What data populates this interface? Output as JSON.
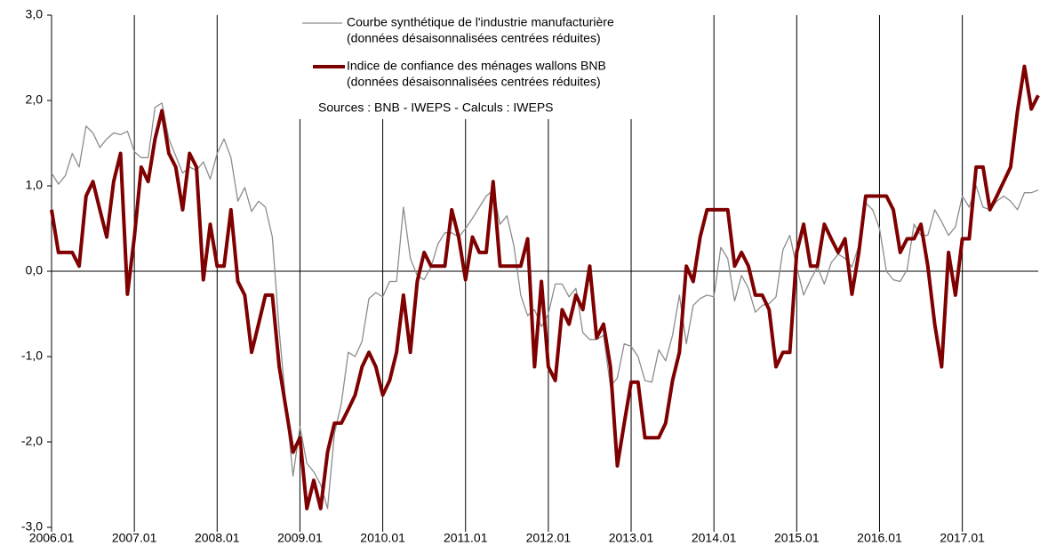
{
  "chart_data": {
    "type": "line",
    "categories": [
      "2006.01",
      null,
      null,
      null,
      null,
      null,
      null,
      null,
      null,
      null,
      null,
      null,
      "2007.01",
      null,
      null,
      null,
      null,
      null,
      null,
      null,
      null,
      null,
      null,
      null,
      "2008.01",
      null,
      null,
      null,
      null,
      null,
      null,
      null,
      null,
      null,
      null,
      null,
      "2009.01",
      null,
      null,
      null,
      null,
      null,
      null,
      null,
      null,
      null,
      null,
      null,
      "2010.01",
      null,
      null,
      null,
      null,
      null,
      null,
      null,
      null,
      null,
      null,
      null,
      "2011.01",
      null,
      null,
      null,
      null,
      null,
      null,
      null,
      null,
      null,
      null,
      null,
      "2012.01",
      null,
      null,
      null,
      null,
      null,
      null,
      null,
      null,
      null,
      null,
      null,
      "2013.01",
      null,
      null,
      null,
      null,
      null,
      null,
      null,
      null,
      null,
      null,
      null,
      "2014.01",
      null,
      null,
      null,
      null,
      null,
      null,
      null,
      null,
      null,
      null,
      null,
      "2015.01",
      null,
      null,
      null,
      null,
      null,
      null,
      null,
      null,
      null,
      null,
      null,
      "2016.01",
      null,
      null,
      null,
      null,
      null,
      null,
      null,
      null,
      null,
      null,
      null,
      "2017.01",
      null,
      null,
      null,
      null,
      null,
      null,
      null,
      null,
      null,
      null,
      null
    ],
    "series": [
      {
        "name": "Courbe synthétique de l'industrie manufacturière",
        "description": "(données désaisonnalisées centrées réduites)",
        "color": "#8c8c8c",
        "width": 1.3,
        "values": [
          1.15,
          1.02,
          1.12,
          1.38,
          1.22,
          1.7,
          1.62,
          1.45,
          1.55,
          1.62,
          1.6,
          1.64,
          1.4,
          1.33,
          1.33,
          1.92,
          1.97,
          1.55,
          1.35,
          1.15,
          1.22,
          1.18,
          1.28,
          1.08,
          1.38,
          1.55,
          1.33,
          0.82,
          0.98,
          0.7,
          0.82,
          0.75,
          0.4,
          -0.7,
          -1.6,
          -2.4,
          -1.82,
          -2.25,
          -2.35,
          -2.5,
          -2.78,
          -1.9,
          -1.55,
          -0.95,
          -1.0,
          -0.82,
          -0.32,
          -0.25,
          -0.3,
          -0.12,
          -0.12,
          0.75,
          0.15,
          -0.05,
          -0.1,
          0.05,
          0.32,
          0.45,
          0.45,
          0.4,
          0.5,
          0.62,
          0.75,
          0.88,
          0.95,
          0.55,
          0.65,
          0.3,
          -0.28,
          -0.52,
          -0.45,
          -0.65,
          -0.5,
          -0.15,
          -0.15,
          -0.3,
          -0.2,
          -0.72,
          -0.8,
          -0.8,
          -0.75,
          -1.35,
          -1.25,
          -0.85,
          -0.88,
          -1.0,
          -1.28,
          -1.3,
          -0.92,
          -1.05,
          -0.75,
          -0.28,
          -0.85,
          -0.4,
          -0.32,
          -0.28,
          -0.3,
          0.28,
          0.15,
          -0.35,
          -0.05,
          -0.2,
          -0.48,
          -0.4,
          -0.38,
          -0.3,
          0.25,
          0.42,
          0.05,
          -0.28,
          -0.1,
          0.05,
          -0.15,
          0.1,
          0.2,
          0.15,
          0.05,
          0.3,
          0.8,
          0.72,
          0.5,
          0.0,
          -0.1,
          -0.12,
          0.02,
          0.55,
          0.42,
          0.42,
          0.72,
          0.58,
          0.42,
          0.52,
          0.88,
          0.75,
          1.0,
          0.75,
          0.72,
          0.82,
          0.88,
          0.82,
          0.72,
          0.92,
          0.92,
          0.95
        ]
      },
      {
        "name": "Indice de confiance des ménages wallons BNB",
        "description": "(données désaisonnalisées centrées réduites)",
        "color": "#7f0000",
        "width": 4,
        "values": [
          0.72,
          0.22,
          0.22,
          0.22,
          0.06,
          0.88,
          1.05,
          0.72,
          0.4,
          1.05,
          1.38,
          -0.27,
          0.4,
          1.22,
          1.05,
          1.55,
          1.88,
          1.38,
          1.22,
          0.72,
          1.38,
          1.22,
          -0.1,
          0.55,
          0.06,
          0.06,
          0.72,
          -0.12,
          -0.28,
          -0.95,
          -0.62,
          -0.28,
          -0.28,
          -1.12,
          -1.62,
          -2.12,
          -1.95,
          -2.78,
          -2.45,
          -2.78,
          -2.12,
          -1.78,
          -1.78,
          -1.62,
          -1.45,
          -1.12,
          -0.95,
          -1.12,
          -1.45,
          -1.28,
          -0.95,
          -0.28,
          -0.95,
          -0.12,
          0.22,
          0.06,
          0.06,
          0.06,
          0.72,
          0.4,
          -0.1,
          0.4,
          0.22,
          0.22,
          1.05,
          0.06,
          0.06,
          0.06,
          0.06,
          0.38,
          -1.12,
          -0.12,
          -1.12,
          -1.28,
          -0.45,
          -0.62,
          -0.28,
          -0.45,
          0.06,
          -0.78,
          -0.62,
          -1.12,
          -2.28,
          -1.78,
          -1.3,
          -1.3,
          -1.95,
          -1.95,
          -1.95,
          -1.78,
          -1.28,
          -0.95,
          0.06,
          -0.12,
          0.4,
          0.72,
          0.72,
          0.72,
          0.72,
          0.06,
          0.22,
          0.06,
          -0.28,
          -0.28,
          -0.45,
          -1.12,
          -0.95,
          -0.95,
          0.22,
          0.55,
          0.06,
          0.06,
          0.55,
          0.38,
          0.22,
          0.38,
          -0.27,
          0.22,
          0.88,
          0.88,
          0.88,
          0.88,
          0.72,
          0.22,
          0.38,
          0.38,
          0.55,
          0.06,
          -0.62,
          -1.12,
          0.22,
          -0.28,
          0.38,
          0.38,
          1.22,
          1.22,
          0.72,
          0.88,
          1.05,
          1.22,
          1.88,
          2.4,
          1.9,
          2.06
        ]
      }
    ],
    "source": "Sources : BNB - IWEPS - Calculs : IWEPS",
    "ylim": [
      -3,
      3
    ],
    "yticks": [
      {
        "value": -3,
        "label": "-3,0"
      },
      {
        "value": -2,
        "label": "-2,0"
      },
      {
        "value": -1,
        "label": "-1,0"
      },
      {
        "value": 0,
        "label": "0,0"
      },
      {
        "value": 1,
        "label": "1,0"
      },
      {
        "value": 2,
        "label": "2,0"
      },
      {
        "value": 3,
        "label": "3,0"
      }
    ],
    "grid": true
  }
}
